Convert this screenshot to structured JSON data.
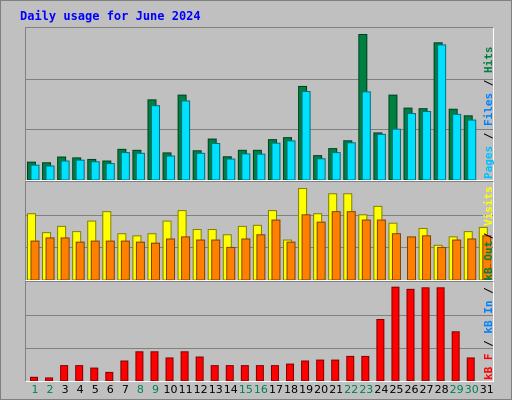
{
  "title": "Daily usage for June 2024",
  "chart_data": [
    {
      "type": "bar",
      "name": "hits-files-pages",
      "categories": [
        "1",
        "2",
        "3",
        "4",
        "5",
        "6",
        "7",
        "8",
        "9",
        "10",
        "11",
        "12",
        "13",
        "14",
        "15",
        "16",
        "17",
        "18",
        "19",
        "20",
        "21",
        "22",
        "23",
        "24",
        "25",
        "26",
        "27",
        "28",
        "29",
        "30",
        "31"
      ],
      "ymax_label": "10375",
      "ylim": [
        0,
        10375
      ],
      "series": [
        {
          "name": "Hits",
          "color": "#008040",
          "values": [
            1250,
            1210,
            1610,
            1550,
            1440,
            1330,
            2150,
            2080,
            5620,
            1900,
            5950,
            2050,
            2870,
            1630,
            2080,
            2080,
            2830,
            2970,
            6560,
            1710,
            2200,
            2750,
            10200,
            3300,
            5950,
            5040,
            5000,
            9620,
            4960,
            4500,
            0
          ]
        },
        {
          "name": "Files",
          "color": "#00e0ff",
          "values": [
            1040,
            980,
            1330,
            1390,
            1280,
            1150,
            1920,
            1870,
            5210,
            1680,
            5540,
            1870,
            2560,
            1470,
            1830,
            1810,
            2580,
            2740,
            6200,
            1490,
            1920,
            2610,
            6180,
            3200,
            3560,
            4660,
            4800,
            9470,
            4600,
            4200,
            0
          ]
        },
        {
          "name": "Pages",
          "color": "#00c0ff",
          "values": [
            0,
            0,
            0,
            0,
            0,
            0,
            0,
            0,
            0,
            0,
            0,
            0,
            0,
            0,
            0,
            0,
            0,
            0,
            0,
            0,
            0,
            0,
            0,
            0,
            0,
            0,
            0,
            0,
            0,
            0,
            0
          ]
        }
      ],
      "legend": [
        {
          "text": "Pages",
          "color": "#00c0ff"
        },
        {
          "text": " / ",
          "color": "#000000"
        },
        {
          "text": "Files",
          "color": "#0080ff"
        },
        {
          "text": " / ",
          "color": "#000000"
        },
        {
          "text": "Hits",
          "color": "#008040"
        }
      ]
    },
    {
      "type": "bar",
      "name": "visits-sites",
      "categories": [
        "1",
        "2",
        "3",
        "4",
        "5",
        "6",
        "7",
        "8",
        "9",
        "10",
        "11",
        "12",
        "13",
        "14",
        "15",
        "16",
        "17",
        "18",
        "19",
        "20",
        "21",
        "22",
        "23",
        "24",
        "25",
        "26",
        "27",
        "28",
        "29",
        "30",
        "31"
      ],
      "ymax_label": "447",
      "ylim": [
        0,
        447
      ],
      "series": [
        {
          "name": "Visits",
          "color": "#ffff00",
          "values": [
            315,
            225,
            255,
            230,
            280,
            325,
            220,
            210,
            220,
            280,
            330,
            240,
            240,
            215,
            255,
            260,
            330,
            190,
            435,
            315,
            410,
            410,
            310,
            350,
            270,
            0,
            245,
            165,
            205,
            230,
            250
          ]
        },
        {
          "name": "Sites",
          "color": "#ff8000",
          "values": [
            185,
            200,
            200,
            180,
            185,
            185,
            185,
            180,
            175,
            195,
            205,
            190,
            190,
            155,
            195,
            215,
            285,
            180,
            310,
            275,
            325,
            325,
            285,
            285,
            220,
            205,
            210,
            155,
            190,
            195,
            210
          ]
        }
      ],
      "legend": [
        {
          "text": "Sites",
          "color": "#ff8000"
        },
        {
          "text": " / ",
          "color": "#000000"
        },
        {
          "text": "Visits",
          "color": "#ffff00"
        }
      ]
    },
    {
      "type": "bar",
      "name": "kbytes",
      "categories": [
        "1",
        "2",
        "3",
        "4",
        "5",
        "6",
        "7",
        "8",
        "9",
        "10",
        "11",
        "12",
        "13",
        "14",
        "15",
        "16",
        "17",
        "18",
        "19",
        "20",
        "21",
        "22",
        "23",
        "24",
        "25",
        "26",
        "27",
        "28",
        "29",
        "30",
        "31"
      ],
      "ymax_label": "308893",
      "ylim": [
        0,
        308893
      ],
      "series": [
        {
          "name": "kB F",
          "color": "#ff0000",
          "values": [
            12000,
            10000,
            50000,
            50000,
            42000,
            28000,
            65000,
            95000,
            95000,
            75000,
            95000,
            78000,
            50000,
            50000,
            50000,
            50000,
            50000,
            55000,
            65000,
            68000,
            68000,
            80000,
            80000,
            200000,
            305000,
            298000,
            303000,
            303000,
            160000,
            75000,
            0
          ]
        }
      ],
      "legend": [
        {
          "text": "kB F",
          "color": "#ff0000"
        },
        {
          "text": " / ",
          "color": "#000000"
        },
        {
          "text": "kB In",
          "color": "#0080ff"
        },
        {
          "text": " / ",
          "color": "#000000"
        },
        {
          "text": "kB Out",
          "color": "#008040"
        }
      ]
    }
  ],
  "weekend_days": [
    "1",
    "2",
    "8",
    "9",
    "15",
    "16",
    "22",
    "23",
    "29",
    "30"
  ],
  "colors": {
    "weekday": "#000000",
    "weekend": "#00805c",
    "grid": "#808080",
    "title": "#0000ff"
  }
}
